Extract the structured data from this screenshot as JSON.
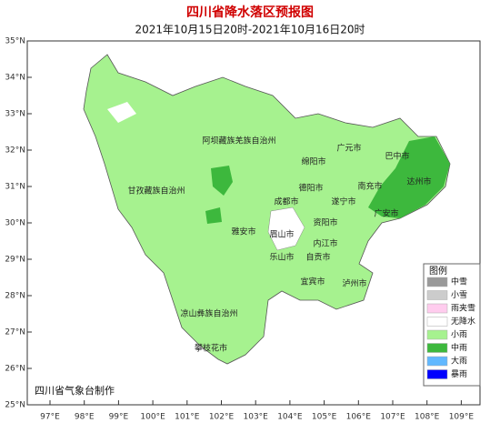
{
  "header": {
    "title": "四川省降水落区预报图",
    "subtitle": "2021年10月15日20时-2021年10月16日20时"
  },
  "lat_ticks": [
    {
      "value": 35,
      "label": "35°N"
    },
    {
      "value": 34,
      "label": "34°N"
    },
    {
      "value": 33,
      "label": "33°N"
    },
    {
      "value": 32,
      "label": "32°N"
    },
    {
      "value": 31,
      "label": "31°N"
    },
    {
      "value": 30,
      "label": "30°N"
    },
    {
      "value": 29,
      "label": "29°N"
    },
    {
      "value": 28,
      "label": "28°N"
    },
    {
      "value": 27,
      "label": "27°N"
    },
    {
      "value": 26,
      "label": "26°N"
    },
    {
      "value": 25,
      "label": "25°N"
    }
  ],
  "lon_ticks": [
    {
      "value": 97,
      "label": "97°E"
    },
    {
      "value": 98,
      "label": "98°E"
    },
    {
      "value": 99,
      "label": "99°E"
    },
    {
      "value": 100,
      "label": "100°E"
    },
    {
      "value": 101,
      "label": "101°E"
    },
    {
      "value": 102,
      "label": "102°E"
    },
    {
      "value": 103,
      "label": "103°E"
    },
    {
      "value": 104,
      "label": "104°E"
    },
    {
      "value": 105,
      "label": "105°E"
    },
    {
      "value": 106,
      "label": "106°E"
    },
    {
      "value": 107,
      "label": "107°E"
    },
    {
      "value": 108,
      "label": "108°E"
    },
    {
      "value": 109,
      "label": "109°E"
    }
  ],
  "places": [
    "阿坝藏族羌族自治州",
    "甘孜藏族自治州",
    "广元市",
    "绵阳市",
    "巴中市",
    "德阳市",
    "南充市",
    "达州市",
    "成都市",
    "遂宁市",
    "广安市",
    "雅安市",
    "眉山市",
    "资阳市",
    "内江市",
    "乐山市",
    "自贡市",
    "泸州市",
    "宜宾市",
    "凉山彝族自治州",
    "攀枝花市"
  ],
  "legend": {
    "title": "图例",
    "items": [
      {
        "label": "中雪",
        "color": "#999999"
      },
      {
        "label": "小雪",
        "color": "#cccccc"
      },
      {
        "label": "雨夹雪",
        "color": "#ffccee"
      },
      {
        "label": "无降水",
        "color": "#ffffff"
      },
      {
        "label": "小雨",
        "color": "#a6f28f"
      },
      {
        "label": "中雨",
        "color": "#3db83d"
      },
      {
        "label": "大雨",
        "color": "#61b8ff"
      },
      {
        "label": "暴雨",
        "color": "#0000fe"
      }
    ]
  },
  "credit": "四川省气象台制作"
}
